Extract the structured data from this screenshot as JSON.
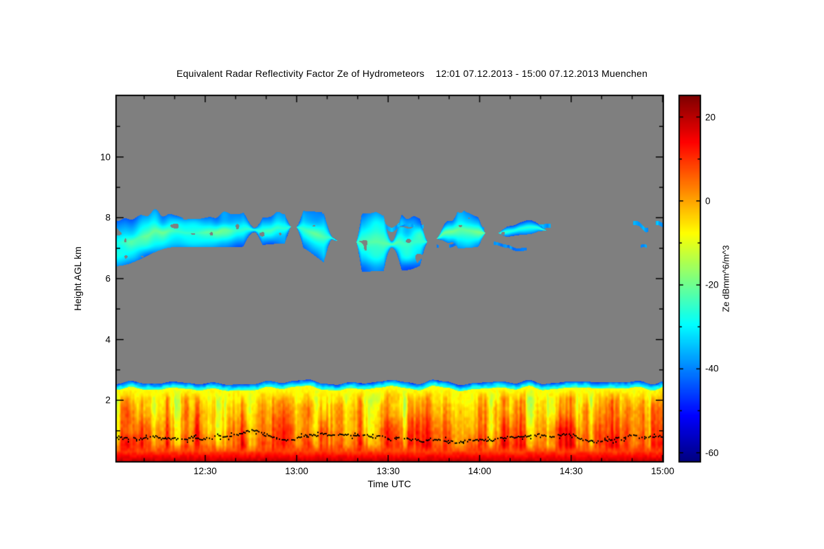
{
  "page": {
    "background": "#ffffff"
  },
  "chart_data": {
    "type": "heatmap",
    "title": "Equivalent Radar Reflectivity Factor Ze of Hydrometeors",
    "subtitle": "12:01 07.12.2013 - 15:00 07.12.2013 Muenchen",
    "title_full": "Equivalent Radar Reflectivity Factor Ze of Hydrometeors    12:01 07.12.2013 - 15:00 07.12.2013 Muenchen",
    "xlabel": "Time UTC",
    "ylabel": "Height AGL km",
    "station": "Muenchen",
    "time_start": "12:01 07.12.2013",
    "time_end": "15:00 07.12.2013",
    "x_start_minutes": 721,
    "x_end_minutes": 900,
    "x_ticks": [
      {
        "label": "12:30",
        "minutes": 750
      },
      {
        "label": "13:00",
        "minutes": 780
      },
      {
        "label": "13:30",
        "minutes": 810
      },
      {
        "label": "14:00",
        "minutes": 840
      },
      {
        "label": "14:30",
        "minutes": 870
      },
      {
        "label": "15:00",
        "minutes": 900
      }
    ],
    "x_minor_step_minutes": 10,
    "ylim": [
      0,
      12
    ],
    "y_major_ticks": [
      2,
      4,
      6,
      8,
      10
    ],
    "y_minor_step": 1,
    "grid": false,
    "no_data_color": "#7f7f7f",
    "colorbar": {
      "label": "Ze dBmm^6/m^3",
      "position": "right",
      "colormap": "jet",
      "range": [
        -62,
        25
      ],
      "major_ticks": [
        20,
        0,
        -20,
        -40,
        -60
      ],
      "minor_step": 10,
      "top_color": "#7f0000",
      "bottom_color": "#00007f"
    },
    "layers": [
      {
        "id": "cirrus",
        "name": "mid-level ice cloud band",
        "height_km": [
          6.3,
          8.6
        ],
        "ze_range": [
          -46,
          -19
        ],
        "description": "patchy cyan-blue cloud band around 7-8 km, dense from 12:01 to about 13:50, breaking into thin scattered fragments between 14:00 and 15:00"
      },
      {
        "id": "boundary-layer",
        "name": "low-level hydrometeor layer",
        "height_km": [
          0,
          2.7
        ],
        "ze_range": [
          -45,
          24
        ],
        "description": "continuous layer topped by a thin blue-cyan fringe near 2.6-2.7 km; yellow-green body with orange-red vertical streaks; intense red band below about 0.35 km"
      },
      {
        "id": "melting-line",
        "name": "black dotted line",
        "height_km_mean": 0.85,
        "height_km_range": [
          0.55,
          1.1
        ],
        "description": "meandering black dotted line near 0.8-1.0 km across the full time range"
      }
    ]
  }
}
